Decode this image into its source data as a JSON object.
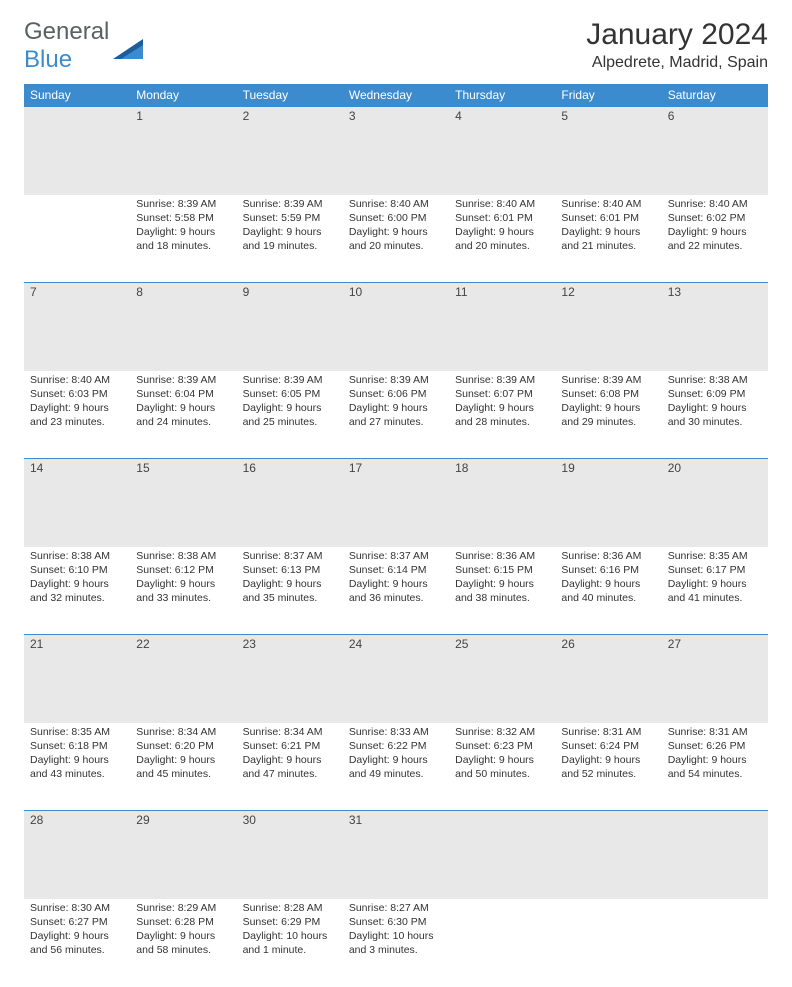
{
  "logo": {
    "text1": "General",
    "text2": "Blue",
    "color1": "#5a6063",
    "color2": "#3b8bce"
  },
  "title": {
    "month": "January 2024",
    "location": "Alpedrete, Madrid, Spain"
  },
  "calendar": {
    "header_bg": "#3b8bce",
    "header_fg": "#ffffff",
    "daynum_bg": "#e8e8e8",
    "divider_color": "#3b8bce",
    "days_of_week": [
      "Sunday",
      "Monday",
      "Tuesday",
      "Wednesday",
      "Thursday",
      "Friday",
      "Saturday"
    ],
    "weeks": [
      [
        {
          "num": "",
          "sunrise": "",
          "sunset": "",
          "daylight": ""
        },
        {
          "num": "1",
          "sunrise": "Sunrise: 8:39 AM",
          "sunset": "Sunset: 5:58 PM",
          "daylight": "Daylight: 9 hours and 18 minutes."
        },
        {
          "num": "2",
          "sunrise": "Sunrise: 8:39 AM",
          "sunset": "Sunset: 5:59 PM",
          "daylight": "Daylight: 9 hours and 19 minutes."
        },
        {
          "num": "3",
          "sunrise": "Sunrise: 8:40 AM",
          "sunset": "Sunset: 6:00 PM",
          "daylight": "Daylight: 9 hours and 20 minutes."
        },
        {
          "num": "4",
          "sunrise": "Sunrise: 8:40 AM",
          "sunset": "Sunset: 6:01 PM",
          "daylight": "Daylight: 9 hours and 20 minutes."
        },
        {
          "num": "5",
          "sunrise": "Sunrise: 8:40 AM",
          "sunset": "Sunset: 6:01 PM",
          "daylight": "Daylight: 9 hours and 21 minutes."
        },
        {
          "num": "6",
          "sunrise": "Sunrise: 8:40 AM",
          "sunset": "Sunset: 6:02 PM",
          "daylight": "Daylight: 9 hours and 22 minutes."
        }
      ],
      [
        {
          "num": "7",
          "sunrise": "Sunrise: 8:40 AM",
          "sunset": "Sunset: 6:03 PM",
          "daylight": "Daylight: 9 hours and 23 minutes."
        },
        {
          "num": "8",
          "sunrise": "Sunrise: 8:39 AM",
          "sunset": "Sunset: 6:04 PM",
          "daylight": "Daylight: 9 hours and 24 minutes."
        },
        {
          "num": "9",
          "sunrise": "Sunrise: 8:39 AM",
          "sunset": "Sunset: 6:05 PM",
          "daylight": "Daylight: 9 hours and 25 minutes."
        },
        {
          "num": "10",
          "sunrise": "Sunrise: 8:39 AM",
          "sunset": "Sunset: 6:06 PM",
          "daylight": "Daylight: 9 hours and 27 minutes."
        },
        {
          "num": "11",
          "sunrise": "Sunrise: 8:39 AM",
          "sunset": "Sunset: 6:07 PM",
          "daylight": "Daylight: 9 hours and 28 minutes."
        },
        {
          "num": "12",
          "sunrise": "Sunrise: 8:39 AM",
          "sunset": "Sunset: 6:08 PM",
          "daylight": "Daylight: 9 hours and 29 minutes."
        },
        {
          "num": "13",
          "sunrise": "Sunrise: 8:38 AM",
          "sunset": "Sunset: 6:09 PM",
          "daylight": "Daylight: 9 hours and 30 minutes."
        }
      ],
      [
        {
          "num": "14",
          "sunrise": "Sunrise: 8:38 AM",
          "sunset": "Sunset: 6:10 PM",
          "daylight": "Daylight: 9 hours and 32 minutes."
        },
        {
          "num": "15",
          "sunrise": "Sunrise: 8:38 AM",
          "sunset": "Sunset: 6:12 PM",
          "daylight": "Daylight: 9 hours and 33 minutes."
        },
        {
          "num": "16",
          "sunrise": "Sunrise: 8:37 AM",
          "sunset": "Sunset: 6:13 PM",
          "daylight": "Daylight: 9 hours and 35 minutes."
        },
        {
          "num": "17",
          "sunrise": "Sunrise: 8:37 AM",
          "sunset": "Sunset: 6:14 PM",
          "daylight": "Daylight: 9 hours and 36 minutes."
        },
        {
          "num": "18",
          "sunrise": "Sunrise: 8:36 AM",
          "sunset": "Sunset: 6:15 PM",
          "daylight": "Daylight: 9 hours and 38 minutes."
        },
        {
          "num": "19",
          "sunrise": "Sunrise: 8:36 AM",
          "sunset": "Sunset: 6:16 PM",
          "daylight": "Daylight: 9 hours and 40 minutes."
        },
        {
          "num": "20",
          "sunrise": "Sunrise: 8:35 AM",
          "sunset": "Sunset: 6:17 PM",
          "daylight": "Daylight: 9 hours and 41 minutes."
        }
      ],
      [
        {
          "num": "21",
          "sunrise": "Sunrise: 8:35 AM",
          "sunset": "Sunset: 6:18 PM",
          "daylight": "Daylight: 9 hours and 43 minutes."
        },
        {
          "num": "22",
          "sunrise": "Sunrise: 8:34 AM",
          "sunset": "Sunset: 6:20 PM",
          "daylight": "Daylight: 9 hours and 45 minutes."
        },
        {
          "num": "23",
          "sunrise": "Sunrise: 8:34 AM",
          "sunset": "Sunset: 6:21 PM",
          "daylight": "Daylight: 9 hours and 47 minutes."
        },
        {
          "num": "24",
          "sunrise": "Sunrise: 8:33 AM",
          "sunset": "Sunset: 6:22 PM",
          "daylight": "Daylight: 9 hours and 49 minutes."
        },
        {
          "num": "25",
          "sunrise": "Sunrise: 8:32 AM",
          "sunset": "Sunset: 6:23 PM",
          "daylight": "Daylight: 9 hours and 50 minutes."
        },
        {
          "num": "26",
          "sunrise": "Sunrise: 8:31 AM",
          "sunset": "Sunset: 6:24 PM",
          "daylight": "Daylight: 9 hours and 52 minutes."
        },
        {
          "num": "27",
          "sunrise": "Sunrise: 8:31 AM",
          "sunset": "Sunset: 6:26 PM",
          "daylight": "Daylight: 9 hours and 54 minutes."
        }
      ],
      [
        {
          "num": "28",
          "sunrise": "Sunrise: 8:30 AM",
          "sunset": "Sunset: 6:27 PM",
          "daylight": "Daylight: 9 hours and 56 minutes."
        },
        {
          "num": "29",
          "sunrise": "Sunrise: 8:29 AM",
          "sunset": "Sunset: 6:28 PM",
          "daylight": "Daylight: 9 hours and 58 minutes."
        },
        {
          "num": "30",
          "sunrise": "Sunrise: 8:28 AM",
          "sunset": "Sunset: 6:29 PM",
          "daylight": "Daylight: 10 hours and 1 minute."
        },
        {
          "num": "31",
          "sunrise": "Sunrise: 8:27 AM",
          "sunset": "Sunset: 6:30 PM",
          "daylight": "Daylight: 10 hours and 3 minutes."
        },
        {
          "num": "",
          "sunrise": "",
          "sunset": "",
          "daylight": ""
        },
        {
          "num": "",
          "sunrise": "",
          "sunset": "",
          "daylight": ""
        },
        {
          "num": "",
          "sunrise": "",
          "sunset": "",
          "daylight": ""
        }
      ]
    ]
  }
}
